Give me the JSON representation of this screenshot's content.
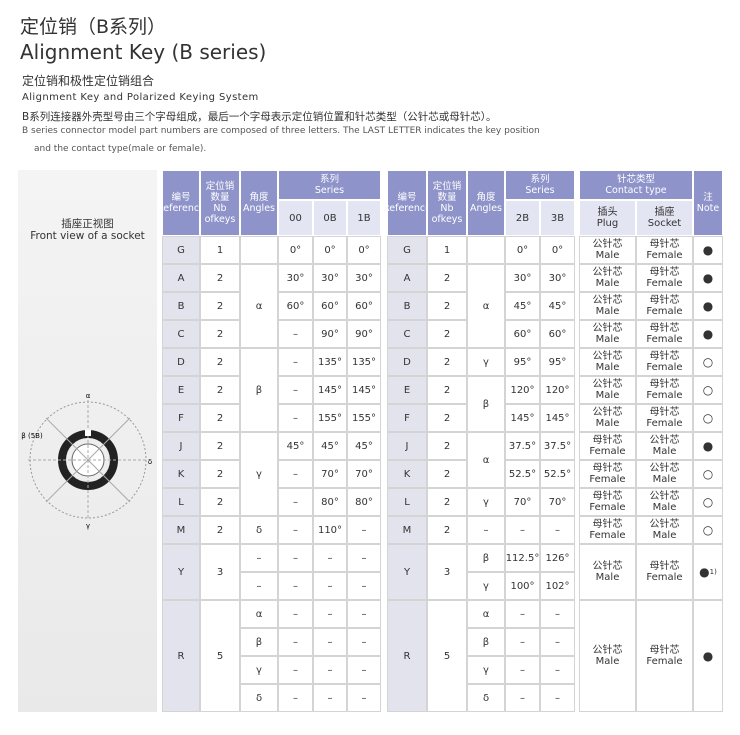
{
  "header": {
    "title_cn": "定位销（B系列）",
    "title_en": "Alignment Key (B series)",
    "subtitle_cn": "定位销和极性定位销组合",
    "subtitle_en": "Alignment Key and Polarized Keying System",
    "desc_cn": "B系列连接器外壳型号由三个字母组成，最后一个字母表示定位销位置和针芯类型（公针芯或母针芯）。",
    "desc_en_1": "B series connector model part numbers are composed of three letters. The LAST LETTER indicates the key position",
    "desc_en_2": "and the contact type(male or female)."
  },
  "panel": {
    "title_cn": "插座正视图",
    "title_en": "Front view of a socket",
    "diagram_labels": [
      "α",
      "β (5B)",
      "γ",
      "δ"
    ]
  },
  "table1": {
    "ref": [
      "编号",
      "Reference"
    ],
    "nb": [
      "定位销",
      "数量",
      "Nb",
      "ofkeys"
    ],
    "angles": [
      "角度",
      "Angles"
    ],
    "series": [
      "系列",
      "Series"
    ],
    "cols": [
      "00",
      "0B",
      "1B"
    ],
    "rows": [
      {
        "ref": "G",
        "nb": "1",
        "sub": [
          {
            "angle": null,
            "values": [
              "0°",
              "0°",
              "0°"
            ]
          }
        ]
      },
      {
        "ref": "A",
        "nb": "2",
        "sub": [
          {
            "angle": "α",
            "values": [
              "30°",
              "30°",
              "30°"
            ]
          }
        ]
      },
      {
        "ref": "B",
        "nb": "2",
        "sub": [
          {
            "angle": null,
            "values": [
              "60°",
              "60°",
              "60°"
            ]
          }
        ]
      },
      {
        "ref": "C",
        "nb": "2",
        "sub": [
          {
            "angle": null,
            "values": [
              "–",
              "90°",
              "90°"
            ]
          }
        ]
      },
      {
        "ref": "D",
        "nb": "2",
        "sub": [
          {
            "angle": "β",
            "values": [
              "–",
              "135°",
              "135°"
            ]
          }
        ]
      },
      {
        "ref": "E",
        "nb": "2",
        "sub": [
          {
            "angle": null,
            "values": [
              "–",
              "145°",
              "145°"
            ]
          }
        ]
      },
      {
        "ref": "F",
        "nb": "2",
        "sub": [
          {
            "angle": null,
            "values": [
              "–",
              "155°",
              "155°"
            ]
          }
        ]
      },
      {
        "ref": "J",
        "nb": "2",
        "sub": [
          {
            "angle": "γ",
            "values": [
              "45°",
              "45°",
              "45°"
            ]
          }
        ]
      },
      {
        "ref": "K",
        "nb": "2",
        "sub": [
          {
            "angle": null,
            "values": [
              "–",
              "70°",
              "70°"
            ]
          }
        ]
      },
      {
        "ref": "L",
        "nb": "2",
        "sub": [
          {
            "angle": null,
            "values": [
              "–",
              "80°",
              "80°"
            ]
          }
        ]
      },
      {
        "ref": "M",
        "nb": "2",
        "sub": [
          {
            "angle": "δ",
            "values": [
              "–",
              "110°",
              "–"
            ]
          }
        ]
      },
      {
        "ref": "Y",
        "nb": "3",
        "sub": [
          {
            "angle": "–",
            "values": [
              "–",
              "–",
              "–"
            ]
          },
          {
            "angle": "–",
            "values": [
              "–",
              "–",
              "–"
            ]
          }
        ]
      },
      {
        "ref": "R",
        "nb": "5",
        "sub": [
          {
            "angle": "α",
            "values": [
              "–",
              "–",
              "–"
            ]
          },
          {
            "angle": "β",
            "values": [
              "–",
              "–",
              "–"
            ]
          },
          {
            "angle": "γ",
            "values": [
              "–",
              "–",
              "–"
            ]
          },
          {
            "angle": "δ",
            "values": [
              "–",
              "–",
              "–"
            ]
          }
        ]
      }
    ]
  },
  "table2": {
    "ref": [
      "编号",
      "Reference"
    ],
    "nb": [
      "定位销",
      "数量",
      "Nb",
      "ofkeys"
    ],
    "angles": [
      "角度",
      "Angles"
    ],
    "series": [
      "系列",
      "Series"
    ],
    "cols": [
      "2B",
      "3B"
    ],
    "rows": [
      {
        "ref": "G",
        "nb": "1",
        "sub": [
          {
            "angle": null,
            "values": [
              "0°",
              "0°"
            ]
          }
        ]
      },
      {
        "ref": "A",
        "nb": "2",
        "sub": [
          {
            "angle": "α",
            "values": [
              "30°",
              "30°"
            ]
          }
        ]
      },
      {
        "ref": "B",
        "nb": "2",
        "sub": [
          {
            "angle": null,
            "values": [
              "45°",
              "45°"
            ]
          }
        ]
      },
      {
        "ref": "C",
        "nb": "2",
        "sub": [
          {
            "angle": null,
            "values": [
              "60°",
              "60°"
            ]
          }
        ]
      },
      {
        "ref": "D",
        "nb": "2",
        "sub": [
          {
            "angle": "γ",
            "values": [
              "95°",
              "95°"
            ]
          }
        ]
      },
      {
        "ref": "E",
        "nb": "2",
        "sub": [
          {
            "angle": "β",
            "values": [
              "120°",
              "120°"
            ]
          }
        ]
      },
      {
        "ref": "F",
        "nb": "2",
        "sub": [
          {
            "angle": null,
            "values": [
              "145°",
              "145°"
            ]
          }
        ]
      },
      {
        "ref": "J",
        "nb": "2",
        "sub": [
          {
            "angle": "α",
            "values": [
              "37.5°",
              "37.5°"
            ]
          }
        ]
      },
      {
        "ref": "K",
        "nb": "2",
        "sub": [
          {
            "angle": null,
            "values": [
              "52.5°",
              "52.5°"
            ]
          }
        ]
      },
      {
        "ref": "L",
        "nb": "2",
        "sub": [
          {
            "angle": "γ",
            "values": [
              "70°",
              "70°"
            ]
          }
        ]
      },
      {
        "ref": "M",
        "nb": "2",
        "sub": [
          {
            "angle": "–",
            "values": [
              "–",
              "–"
            ]
          }
        ]
      },
      {
        "ref": "Y",
        "nb": "3",
        "sub": [
          {
            "angle": "β",
            "values": [
              "112.5°",
              "126°"
            ]
          },
          {
            "angle": "γ",
            "values": [
              "100°",
              "102°"
            ]
          }
        ]
      },
      {
        "ref": "R",
        "nb": "5",
        "sub": [
          {
            "angle": "α",
            "values": [
              "–",
              "–"
            ]
          },
          {
            "angle": "β",
            "values": [
              "–",
              "–"
            ]
          },
          {
            "angle": "γ",
            "values": [
              "–",
              "–"
            ]
          },
          {
            "angle": "δ",
            "values": [
              "–",
              "–"
            ]
          }
        ]
      }
    ]
  },
  "table3": {
    "contact": [
      "针芯类型",
      "Contact type"
    ],
    "plug": [
      "插头",
      "Plug"
    ],
    "socket": [
      "插座",
      "Socket"
    ],
    "note": [
      "注",
      "Note"
    ],
    "rows": [
      {
        "plug": [
          "公针芯",
          "Male"
        ],
        "socket": [
          "母针芯",
          "Female"
        ],
        "note": "●"
      },
      {
        "plug": [
          "公针芯",
          "Male"
        ],
        "socket": [
          "母针芯",
          "Female"
        ],
        "note": "●"
      },
      {
        "plug": [
          "公针芯",
          "Male"
        ],
        "socket": [
          "母针芯",
          "Female"
        ],
        "note": "●"
      },
      {
        "plug": [
          "公针芯",
          "Male"
        ],
        "socket": [
          "母针芯",
          "Female"
        ],
        "note": "●"
      },
      {
        "plug": [
          "公针芯",
          "Male"
        ],
        "socket": [
          "母针芯",
          "Female"
        ],
        "note": "○"
      },
      {
        "plug": [
          "公针芯",
          "Male"
        ],
        "socket": [
          "母针芯",
          "Female"
        ],
        "note": "○"
      },
      {
        "plug": [
          "公针芯",
          "Male"
        ],
        "socket": [
          "母针芯",
          "Female"
        ],
        "note": "○"
      },
      {
        "plug": [
          "母针芯",
          "Female"
        ],
        "socket": [
          "公针芯",
          "Male"
        ],
        "note": "●"
      },
      {
        "plug": [
          "母针芯",
          "Female"
        ],
        "socket": [
          "公针芯",
          "Male"
        ],
        "note": "○"
      },
      {
        "plug": [
          "母针芯",
          "Female"
        ],
        "socket": [
          "公针芯",
          "Male"
        ],
        "note": "○"
      },
      {
        "plug": [
          "母针芯",
          "Female"
        ],
        "socket": [
          "公针芯",
          "Male"
        ],
        "note": "○"
      },
      {
        "plug": [
          "公针芯",
          "Male"
        ],
        "socket": [
          "母针芯",
          "Female"
        ],
        "note": "●",
        "note_ref": "1)"
      },
      {
        "plug": [
          "公针芯",
          "Male"
        ],
        "socket": [
          "母针芯",
          "Female"
        ],
        "note": "●"
      }
    ]
  }
}
